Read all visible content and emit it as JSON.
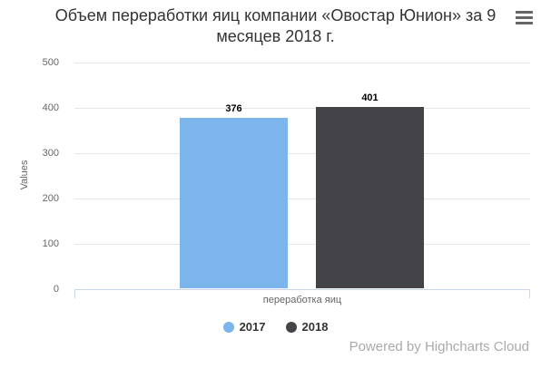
{
  "chart_data": {
    "type": "bar",
    "title": "Объем переработки яиц компании «Овостар Юнион» за 9 месяцев 2018 г.",
    "categories": [
      "переработка яиц"
    ],
    "series": [
      {
        "name": "2017",
        "values": [
          376
        ],
        "color": "#7cb5ec"
      },
      {
        "name": "2018",
        "values": [
          401
        ],
        "color": "#434348"
      }
    ],
    "xlabel": "",
    "ylabel": "Values",
    "ylim": [
      0,
      500
    ],
    "yticks": [
      "0",
      "100",
      "200",
      "300",
      "400",
      "500"
    ],
    "grid": true,
    "data_labels_visible": true,
    "legend_position": "bottom-center",
    "colors": {
      "grid": "#e6e6e6",
      "axis_line": "#ccd6eb",
      "tick_label": "#666666",
      "title": "#333333",
      "data_label": "#000000",
      "legend_text": "#333333"
    }
  },
  "credits": {
    "label": "Powered by Highcharts Cloud"
  }
}
